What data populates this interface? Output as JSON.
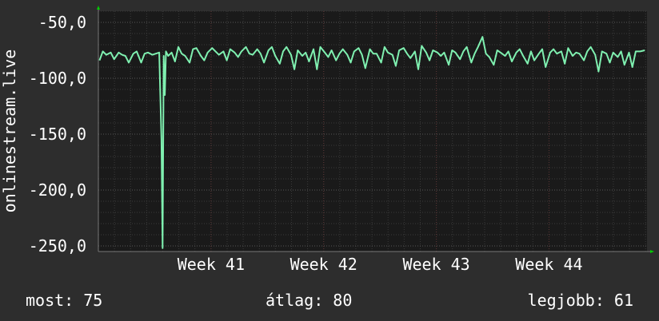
{
  "chart_data": {
    "type": "line",
    "ylabel": "onlinestream.live",
    "xlabel": "",
    "title": "",
    "yticks": [
      {
        "value": -50,
        "label": "-50,0"
      },
      {
        "value": -100,
        "label": "-100,0"
      },
      {
        "value": -150,
        "label": "-150,0"
      },
      {
        "value": -200,
        "label": "-200,0"
      },
      {
        "value": -250,
        "label": "-250,0"
      }
    ],
    "xticks": [
      {
        "value": 41,
        "label": "Week 41"
      },
      {
        "value": 42,
        "label": "Week 42"
      },
      {
        "value": 43,
        "label": "Week 43"
      },
      {
        "value": 44,
        "label": "Week 44"
      }
    ],
    "xlim": [
      40.0,
      44.87
    ],
    "ylim": [
      -255,
      -40
    ],
    "grid": true,
    "colors": {
      "background": "#2d2d2d",
      "plot_background": "#1a1a1a",
      "line": "#7ff0b0",
      "grid_minor": "#3a3a3a",
      "grid_major_x": "#5a3333",
      "grid_major_y": "#555555",
      "axis_arrow": "#00cc00"
    },
    "series": [
      {
        "x": [
          40.01,
          40.04,
          40.07,
          40.11,
          40.14,
          40.18,
          40.21,
          40.24,
          40.27,
          40.31,
          40.34,
          40.38,
          40.41,
          40.44,
          40.48,
          40.51,
          40.54,
          40.56,
          40.57,
          40.58,
          40.59,
          40.6,
          40.62,
          40.65,
          40.68,
          40.71,
          40.74,
          40.77,
          40.81,
          40.84,
          40.87,
          40.91,
          40.94,
          40.97,
          41.01,
          41.04,
          41.07,
          41.11,
          41.14,
          41.17,
          41.21,
          41.24,
          41.27,
          41.31,
          41.34,
          41.37,
          41.41,
          41.44,
          41.47,
          41.51,
          41.54,
          41.57,
          41.61,
          41.64,
          41.67,
          41.71,
          41.74,
          41.77,
          41.81,
          41.84,
          41.87,
          41.91,
          41.94,
          41.97,
          42.01,
          42.04,
          42.07,
          42.11,
          42.14,
          42.17,
          42.21,
          42.24,
          42.27,
          42.31,
          42.34,
          42.37,
          42.41,
          42.44,
          42.47,
          42.51,
          42.54,
          42.57,
          42.61,
          42.64,
          42.67,
          42.71,
          42.74,
          42.77,
          42.81,
          42.84,
          42.87,
          42.91,
          42.94,
          42.97,
          43.01,
          43.04,
          43.07,
          43.11,
          43.14,
          43.17,
          43.21,
          43.24,
          43.27,
          43.31,
          43.34,
          43.37,
          43.41,
          43.44,
          43.47,
          43.51,
          43.54,
          43.57,
          43.61,
          43.64,
          43.67,
          43.71,
          43.74,
          43.77,
          43.81,
          43.84,
          43.87,
          43.91,
          43.94,
          43.97,
          44.01,
          44.04,
          44.07,
          44.11,
          44.14,
          44.17,
          44.21,
          44.24,
          44.27,
          44.31,
          44.34,
          44.37,
          44.41,
          44.44,
          44.47,
          44.51,
          44.54,
          44.57,
          44.61,
          44.64,
          44.67,
          44.71,
          44.74,
          44.77,
          44.81,
          44.85
        ],
        "y": [
          -84,
          -76,
          -79,
          -77,
          -83,
          -77,
          -79,
          -80,
          -86,
          -78,
          -76,
          -86,
          -78,
          -77,
          -79,
          -78,
          -77,
          -155,
          -252,
          -80,
          -115,
          -76,
          -80,
          -77,
          -85,
          -72,
          -78,
          -80,
          -86,
          -74,
          -73,
          -80,
          -84,
          -77,
          -73,
          -76,
          -79,
          -76,
          -84,
          -74,
          -77,
          -81,
          -76,
          -72,
          -78,
          -79,
          -74,
          -78,
          -86,
          -75,
          -72,
          -80,
          -87,
          -76,
          -72,
          -79,
          -92,
          -75,
          -80,
          -77,
          -85,
          -74,
          -92,
          -72,
          -77,
          -81,
          -75,
          -84,
          -78,
          -74,
          -79,
          -86,
          -76,
          -73,
          -79,
          -91,
          -74,
          -78,
          -78,
          -86,
          -72,
          -77,
          -79,
          -89,
          -75,
          -73,
          -78,
          -82,
          -76,
          -92,
          -71,
          -77,
          -84,
          -75,
          -77,
          -80,
          -77,
          -88,
          -75,
          -77,
          -83,
          -76,
          -72,
          -86,
          -78,
          -72,
          -63,
          -78,
          -81,
          -88,
          -75,
          -77,
          -80,
          -76,
          -85,
          -77,
          -74,
          -80,
          -87,
          -76,
          -84,
          -78,
          -74,
          -90,
          -77,
          -74,
          -78,
          -76,
          -87,
          -73,
          -80,
          -77,
          -78,
          -84,
          -76,
          -72,
          -79,
          -94,
          -76,
          -78,
          -86,
          -77,
          -81,
          -76,
          -88,
          -77,
          -90,
          -76,
          -76,
          -75
        ]
      }
    ]
  },
  "footer": {
    "now": "most: 75",
    "avg": "átlag: 80",
    "best": "legjobb: 61"
  }
}
